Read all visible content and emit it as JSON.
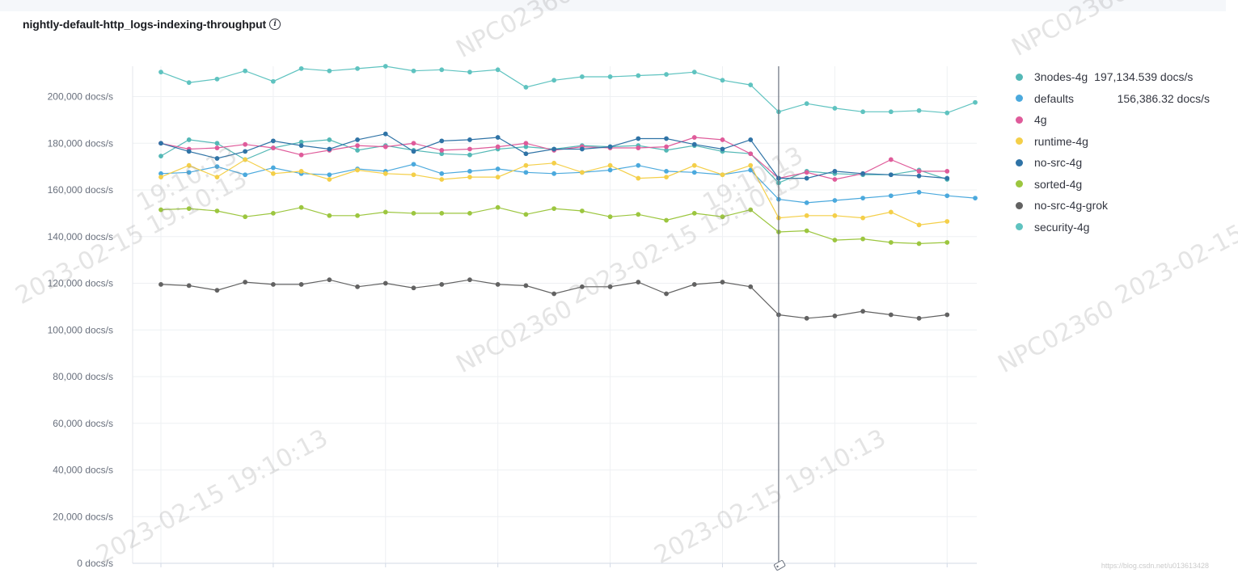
{
  "panel": {
    "title": "nightly-default-http_logs-indexing-throughput",
    "info_icon": "info-icon"
  },
  "watermarks": [
    "NPC02360",
    "2023-02-15",
    "19:10:13"
  ],
  "credit": "https://blog.csdn.net/u013613428",
  "chart_data": {
    "type": "line",
    "ylim": [
      0,
      220000
    ],
    "y_ticks": [
      0,
      20000,
      40000,
      60000,
      80000,
      100000,
      120000,
      140000,
      160000,
      180000,
      200000
    ],
    "y_tick_labels": [
      "0 docs/s",
      "20,000 docs/s",
      "40,000 docs/s",
      "60,000 docs/s",
      "80,000 docs/s",
      "100,000 docs/s",
      "120,000 docs/s",
      "140,000 docs/s",
      "160,000 docs/s",
      "180,000 docs/s",
      "200,000 docs/s"
    ],
    "x": [
      1,
      2,
      3,
      4,
      5,
      6,
      7,
      8,
      9,
      10,
      11,
      12,
      13,
      14,
      15,
      16,
      17,
      18,
      19,
      20,
      21,
      22,
      23,
      24,
      25,
      26,
      27,
      28,
      29,
      30
    ],
    "cursor_x": 23,
    "grid": true,
    "legend_position": "right",
    "series": [
      {
        "name": "3nodes-4g",
        "color": "#54b399",
        "legend_value": "197,134.539 docs/s",
        "values": [
          174500,
          181500,
          180000,
          173000,
          178000,
          180500,
          181500,
          177000,
          179000,
          177000,
          175500,
          175000,
          177500,
          178500,
          177500,
          179000,
          178500,
          179000,
          177000,
          179000,
          176500,
          175500,
          163000,
          168000,
          167000,
          166500,
          166500,
          168500,
          164500,
          null
        ]
      },
      {
        "name": "defaults",
        "color": "#6092c0",
        "legend_value": "156,386.32 docs/s",
        "values": [
          167000,
          167500,
          170000,
          166500,
          169500,
          167000,
          166500,
          169000,
          168000,
          171000,
          167000,
          168000,
          169000,
          167500,
          167000,
          167500,
          168500,
          170500,
          168000,
          167500,
          166500,
          168500,
          156000,
          154500,
          155500,
          156500,
          157500,
          159000,
          157500,
          156500
        ]
      },
      {
        "name": "4g",
        "color": "#d36086",
        "legend_value": "",
        "values": [
          180000,
          177500,
          178000,
          179500,
          178000,
          175000,
          177000,
          179000,
          178500,
          180000,
          177000,
          177500,
          178500,
          180000,
          177000,
          178500,
          178000,
          178000,
          178500,
          182500,
          181500,
          175500,
          165000,
          167500,
          164500,
          167000,
          173000,
          168000,
          168000,
          null
        ]
      },
      {
        "name": "runtime-4g",
        "color": "#9170b8",
        "legend_value": "",
        "values": [
          165500,
          170500,
          165500,
          173000,
          167000,
          168000,
          164500,
          168500,
          167000,
          166500,
          164500,
          165500,
          165500,
          170500,
          171500,
          167500,
          170500,
          165000,
          165500,
          170500,
          166500,
          170500,
          148000,
          149000,
          149000,
          148000,
          150500,
          145000,
          146500,
          null
        ]
      },
      {
        "name": "no-src-4g",
        "color": "#ca8eae",
        "legend_value": "",
        "values": [
          180000,
          176500,
          173500,
          176500,
          181000,
          179000,
          177500,
          181500,
          184000,
          176500,
          181000,
          181500,
          182500,
          175500,
          177500,
          177500,
          178500,
          182000,
          182000,
          179500,
          177500,
          181500,
          165000,
          165000,
          168000,
          167000,
          166500,
          166000,
          165000,
          null
        ]
      },
      {
        "name": "sorted-4g",
        "color": "#d6bf57",
        "legend_value": "",
        "values": [
          151500,
          152000,
          151000,
          148500,
          150000,
          152500,
          149000,
          149000,
          150500,
          150000,
          150000,
          150000,
          152500,
          149500,
          152000,
          151000,
          148500,
          149500,
          147000,
          150000,
          148500,
          151500,
          142000,
          142500,
          138500,
          139000,
          137500,
          137000,
          137500,
          null
        ]
      },
      {
        "name": "no-src-4g-grok",
        "color": "#b9a888",
        "legend_value": "",
        "values": [
          119500,
          119000,
          117000,
          120500,
          119500,
          119500,
          121500,
          118500,
          120000,
          118000,
          119500,
          121500,
          119500,
          119000,
          115500,
          118500,
          118500,
          120500,
          115500,
          119500,
          120500,
          118500,
          106500,
          105000,
          106000,
          108000,
          106500,
          105000,
          106500,
          null
        ]
      },
      {
        "name": "security-4g",
        "color": "#da8b45",
        "legend_value": "",
        "values": [
          210500,
          206000,
          207500,
          211000,
          206500,
          212000,
          211000,
          212000,
          213000,
          211000,
          211500,
          210500,
          211500,
          204000,
          207000,
          208500,
          208500,
          209000,
          209500,
          210500,
          207000,
          205000,
          193500,
          197000,
          195000,
          193500,
          193500,
          194000,
          193000,
          197500
        ]
      }
    ]
  },
  "series_display_colors": {
    "3nodes-4g": "#54b8b6",
    "defaults": "#4ba9dd",
    "4g": "#df5b9a",
    "runtime-4g": "#f4cf49",
    "no-src-4g": "#2f73a6",
    "sorted-4g": "#9cc63f",
    "no-src-4g-grok": "#626262",
    "security-4g": "#5fc3c0"
  }
}
